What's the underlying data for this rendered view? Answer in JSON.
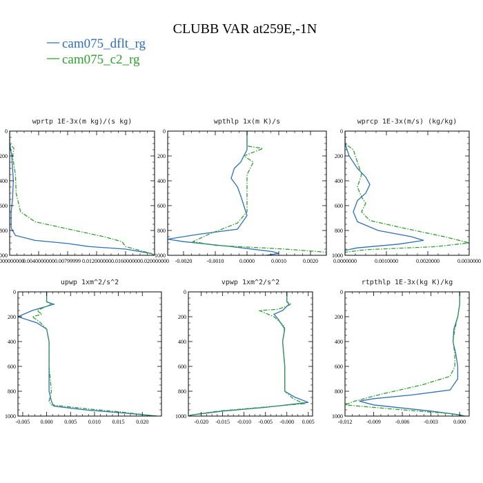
{
  "colors": {
    "dflt": "#2c6fb5",
    "c2": "#2e9e2e",
    "axis": "#000000"
  },
  "chart_data": {
    "title": "CLUBB VAR at259E,-1N",
    "legend": [
      {
        "name": "cam075_dflt_rg",
        "color": "#2c6fb5",
        "style": "solid"
      },
      {
        "name": "cam075_c2_rg",
        "color": "#2e9e2e",
        "style": "dashed"
      }
    ],
    "panels": [
      {
        "id": "wprtp",
        "type": "line",
        "title": "wprtp  1E-3x(m kg)/(s kg)",
        "xlim": [
          0.0,
          0.02
        ],
        "ylim": [
          1000,
          0
        ],
        "xticks": [
          "0.000000000",
          "0.0040000000",
          "0.00799999",
          "0.012000000",
          "0.016000000",
          "0.020000000"
        ],
        "xtick_values": [
          0,
          0.004,
          0.008,
          0.012,
          0.016,
          0.02
        ],
        "yticks": [
          0,
          200,
          400,
          600,
          800,
          1000
        ],
        "series": [
          {
            "name": "cam075_dflt_rg",
            "points": [
              [
                0.0,
                0
              ],
              [
                0.0,
                100
              ],
              [
                0.0003,
                200
              ],
              [
                0.0005,
                400
              ],
              [
                0.0004,
                550
              ],
              [
                0.0002,
                650
              ],
              [
                0.0002,
                780
              ],
              [
                0.0008,
                840
              ],
              [
                0.0035,
                880
              ],
              [
                0.008,
                905
              ],
              [
                0.011,
                930
              ],
              [
                0.016,
                950
              ],
              [
                0.0195,
                985
              ],
              [
                0.02,
                1000
              ]
            ]
          },
          {
            "name": "cam075_c2_rg",
            "points": [
              [
                0.0,
                0
              ],
              [
                0.0,
                100
              ],
              [
                0.0006,
                140
              ],
              [
                0.0004,
                200
              ],
              [
                0.0008,
                350
              ],
              [
                0.0009,
                500
              ],
              [
                0.0015,
                650
              ],
              [
                0.0035,
                730
              ],
              [
                0.009,
                800
              ],
              [
                0.013,
                850
              ],
              [
                0.0155,
                890
              ],
              [
                0.016,
                930
              ],
              [
                0.0195,
                985
              ],
              [
                0.02,
                1000
              ]
            ]
          }
        ]
      },
      {
        "id": "wpthlp",
        "type": "line",
        "title": "wpthlp  1x(m K)/s",
        "xlim": [
          -0.0025,
          0.0025
        ],
        "ylim": [
          1000,
          0
        ],
        "xticks": [
          "-0.0020",
          "-0.0010",
          "0.0000",
          "0.0010",
          "0.0020"
        ],
        "xtick_values": [
          -0.002,
          -0.001,
          0.0,
          0.001,
          0.002
        ],
        "yticks": [
          0,
          200,
          400,
          600,
          800,
          1000
        ],
        "series": [
          {
            "name": "cam075_dflt_rg",
            "points": [
              [
                0.0,
                0
              ],
              [
                0.0,
                150
              ],
              [
                -0.0002,
                250
              ],
              [
                -0.0004,
                300
              ],
              [
                -0.0005,
                380
              ],
              [
                -0.0003,
                450
              ],
              [
                -0.0002,
                520
              ],
              [
                -0.0001,
                600
              ],
              [
                0.0,
                680
              ],
              [
                -0.0003,
                790
              ],
              [
                -0.0015,
                830
              ],
              [
                -0.0025,
                870
              ],
              [
                -0.002,
                890
              ],
              [
                -0.0005,
                930
              ],
              [
                0.0008,
                970
              ],
              [
                0.001,
                985
              ],
              [
                0.0006,
                1000
              ]
            ]
          },
          {
            "name": "cam075_c2_rg",
            "points": [
              [
                0.0,
                0
              ],
              [
                0.0,
                120
              ],
              [
                0.0005,
                140
              ],
              [
                -0.0001,
                200
              ],
              [
                0.0002,
                250
              ],
              [
                0.0,
                350
              ],
              [
                0.0,
                500
              ],
              [
                0.0,
                650
              ],
              [
                -0.0003,
                740
              ],
              [
                -0.0012,
                830
              ],
              [
                -0.0017,
                890
              ],
              [
                -0.001,
                920
              ],
              [
                0.0012,
                950
              ],
              [
                0.0025,
                975
              ],
              [
                0.0025,
                1000
              ]
            ]
          }
        ]
      },
      {
        "id": "wprcp",
        "type": "line",
        "title": "wprcp  1E-3x(m/s) (kg/kg)",
        "xlim": [
          0.0,
          0.003
        ],
        "ylim": [
          1000,
          0
        ],
        "xticks": [
          "0.0000000",
          "0.0010000",
          "0.0020000",
          "0.0030000"
        ],
        "xtick_values": [
          0,
          0.001,
          0.002,
          0.003
        ],
        "yticks": [
          0,
          200,
          400,
          600,
          800,
          1000
        ],
        "series": [
          {
            "name": "cam075_dflt_rg",
            "points": [
              [
                0.0,
                0
              ],
              [
                0.0,
                100
              ],
              [
                0.0001,
                200
              ],
              [
                0.0003,
                300
              ],
              [
                0.0005,
                370
              ],
              [
                0.0006,
                430
              ],
              [
                0.0005,
                500
              ],
              [
                0.0003,
                560
              ],
              [
                0.0002,
                650
              ],
              [
                0.0003,
                730
              ],
              [
                0.0008,
                800
              ],
              [
                0.0016,
                850
              ],
              [
                0.0019,
                880
              ],
              [
                0.0013,
                910
              ],
              [
                0.0003,
                940
              ],
              [
                0.0,
                960
              ],
              [
                0.0,
                1000
              ]
            ]
          },
          {
            "name": "cam075_c2_rg",
            "points": [
              [
                0.0,
                0
              ],
              [
                0.0,
                100
              ],
              [
                0.0002,
                150
              ],
              [
                0.0003,
                250
              ],
              [
                0.0004,
                350
              ],
              [
                0.0003,
                450
              ],
              [
                0.0004,
                530
              ],
              [
                0.0005,
                580
              ],
              [
                0.0004,
                650
              ],
              [
                0.0006,
                720
              ],
              [
                0.0014,
                780
              ],
              [
                0.0024,
                850
              ],
              [
                0.003,
                900
              ],
              [
                0.0022,
                930
              ],
              [
                0.0005,
                955
              ],
              [
                0.0,
                975
              ],
              [
                0.0,
                1000
              ]
            ]
          }
        ]
      },
      {
        "id": "upwp",
        "type": "line",
        "title": "upwp  1xm^2/s^2",
        "xlim": [
          -0.006,
          0.024
        ],
        "ylim": [
          1000,
          0
        ],
        "xticks": [
          "-0.005",
          "0.000",
          "0.005",
          "0.010",
          "0.015",
          "0.020"
        ],
        "xtick_values": [
          -0.005,
          0.0,
          0.005,
          0.01,
          0.015,
          0.02
        ],
        "yticks": [
          0,
          200,
          400,
          600,
          800,
          1000
        ],
        "series": [
          {
            "name": "cam075_dflt_rg",
            "points": [
              [
                0.0,
                0
              ],
              [
                0.0,
                80
              ],
              [
                0.0015,
                100
              ],
              [
                -0.003,
                150
              ],
              [
                -0.006,
                200
              ],
              [
                -0.002,
                250
              ],
              [
                0.0,
                300
              ],
              [
                0.0005,
                400
              ],
              [
                0.0005,
                600
              ],
              [
                0.0005,
                800
              ],
              [
                0.001,
                880
              ],
              [
                0.0015,
                920
              ],
              [
                0.008,
                950
              ],
              [
                0.016,
                975
              ],
              [
                0.023,
                1000
              ]
            ]
          },
          {
            "name": "cam075_c2_rg",
            "points": [
              [
                0.0,
                0
              ],
              [
                0.0,
                80
              ],
              [
                0.001,
                100
              ],
              [
                -0.002,
                150
              ],
              [
                -0.001,
                180
              ],
              [
                -0.003,
                200
              ],
              [
                -0.0015,
                240
              ],
              [
                0.0,
                300
              ],
              [
                0.0005,
                400
              ],
              [
                0.0005,
                600
              ],
              [
                0.001,
                800
              ],
              [
                0.0005,
                880
              ],
              [
                0.001,
                910
              ],
              [
                0.008,
                940
              ],
              [
                0.015,
                965
              ],
              [
                0.023,
                1000
              ]
            ]
          }
        ]
      },
      {
        "id": "vpwp",
        "type": "line",
        "title": "vpwp  1xm^2/s^2",
        "xlim": [
          -0.023,
          0.006
        ],
        "ylim": [
          1000,
          0
        ],
        "xticks": [
          "-0.020",
          "-0.015",
          "-0.010",
          "-0.005",
          "-0.000",
          "0.005"
        ],
        "xtick_values": [
          -0.02,
          -0.015,
          -0.01,
          -0.005,
          0.0,
          0.005
        ],
        "yticks": [
          0,
          200,
          400,
          600,
          800,
          1000
        ],
        "series": [
          {
            "name": "cam075_dflt_rg",
            "points": [
              [
                0.0,
                0
              ],
              [
                0.0,
                80
              ],
              [
                0.0005,
                100
              ],
              [
                -0.001,
                150
              ],
              [
                -0.003,
                180
              ],
              [
                -0.002,
                220
              ],
              [
                -0.0005,
                300
              ],
              [
                -0.001,
                400
              ],
              [
                -0.0005,
                600
              ],
              [
                -0.0005,
                800
              ],
              [
                0.002,
                850
              ],
              [
                0.005,
                890
              ],
              [
                -0.005,
                930
              ],
              [
                -0.015,
                960
              ],
              [
                -0.022,
                990
              ],
              [
                -0.023,
                1000
              ]
            ]
          },
          {
            "name": "cam075_c2_rg",
            "points": [
              [
                0.0,
                0
              ],
              [
                0.0,
                80
              ],
              [
                0.001,
                100
              ],
              [
                -0.002,
                140
              ],
              [
                -0.0065,
                150
              ],
              [
                -0.003,
                200
              ],
              [
                -0.0005,
                280
              ],
              [
                -0.001,
                400
              ],
              [
                -0.0005,
                600
              ],
              [
                -0.0005,
                800
              ],
              [
                0.0015,
                860
              ],
              [
                0.004,
                900
              ],
              [
                -0.006,
                930
              ],
              [
                -0.016,
                960
              ],
              [
                -0.023,
                995
              ],
              [
                -0.023,
                1000
              ]
            ]
          }
        ]
      },
      {
        "id": "rtpthlp",
        "type": "line",
        "title": "rtpthlp  1E-3x(kg K)/kg",
        "xlim": [
          -0.012,
          0.001
        ],
        "ylim": [
          1000,
          0
        ],
        "xticks": [
          "-0.012",
          "-0.009",
          "-0.006",
          "-0.003",
          "0.000"
        ],
        "xtick_values": [
          -0.012,
          -0.009,
          -0.006,
          -0.003,
          0.0
        ],
        "yticks": [
          0,
          200,
          400,
          600,
          800,
          1000
        ],
        "series": [
          {
            "name": "cam075_dflt_rg",
            "points": [
              [
                0.0,
                0
              ],
              [
                0.0,
                100
              ],
              [
                -0.0002,
                200
              ],
              [
                -0.0006,
                300
              ],
              [
                -0.0007,
                400
              ],
              [
                -0.0004,
                500
              ],
              [
                -0.0002,
                600
              ],
              [
                -0.0002,
                700
              ],
              [
                -0.001,
                790
              ],
              [
                -0.005,
                830
              ],
              [
                -0.009,
                860
              ],
              [
                -0.0105,
                880
              ],
              [
                -0.009,
                910
              ],
              [
                -0.003,
                960
              ],
              [
                0.0,
                990
              ],
              [
                0.0005,
                1000
              ]
            ]
          },
          {
            "name": "cam075_c2_rg",
            "points": [
              [
                0.0,
                0
              ],
              [
                0.0,
                100
              ],
              [
                -0.0002,
                200
              ],
              [
                -0.0005,
                300
              ],
              [
                -0.0007,
                400
              ],
              [
                -0.0005,
                500
              ],
              [
                -0.0005,
                600
              ],
              [
                -0.001,
                680
              ],
              [
                -0.004,
                750
              ],
              [
                -0.008,
                820
              ],
              [
                -0.011,
                880
              ],
              [
                -0.012,
                910
              ],
              [
                -0.006,
                950
              ],
              [
                -0.001,
                980
              ],
              [
                0.0005,
                1000
              ]
            ]
          }
        ]
      }
    ]
  }
}
